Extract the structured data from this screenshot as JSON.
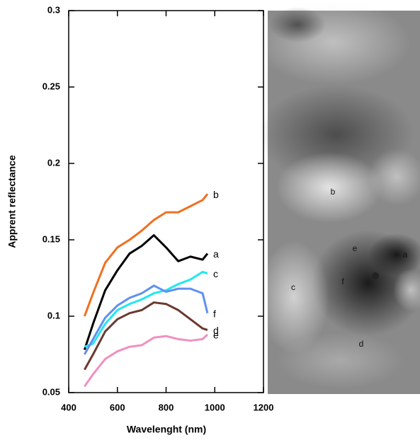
{
  "chart_data": {
    "type": "line",
    "x_label": "Wavelenght (nm)",
    "y_label": "Apprent reflectance",
    "x": [
      465,
      500,
      550,
      600,
      650,
      700,
      750,
      800,
      850,
      900,
      950,
      970
    ],
    "series": [
      {
        "name": "b",
        "color": "#f07020",
        "values": [
          0.1,
          0.115,
          0.135,
          0.145,
          0.15,
          0.156,
          0.163,
          0.168,
          0.168,
          0.172,
          0.176,
          0.18
        ]
      },
      {
        "name": "a",
        "color": "#000000",
        "values": [
          0.078,
          0.095,
          0.117,
          0.13,
          0.141,
          0.146,
          0.153,
          0.145,
          0.136,
          0.139,
          0.137,
          0.141
        ]
      },
      {
        "name": "c",
        "color": "#20e8f0",
        "values": [
          0.08,
          0.082,
          0.095,
          0.104,
          0.108,
          0.111,
          0.115,
          0.117,
          0.121,
          0.124,
          0.129,
          0.128
        ]
      },
      {
        "name": "f",
        "color": "#6090f0",
        "values": [
          0.075,
          0.085,
          0.099,
          0.107,
          0.112,
          0.115,
          0.12,
          0.116,
          0.118,
          0.118,
          0.115,
          0.102
        ]
      },
      {
        "name": "d",
        "color": "#6a3a30",
        "values": [
          0.065,
          0.075,
          0.09,
          0.098,
          0.102,
          0.104,
          0.109,
          0.108,
          0.104,
          0.098,
          0.092,
          0.091
        ]
      },
      {
        "name": "e",
        "color": "#f090c0",
        "values": [
          0.054,
          0.062,
          0.072,
          0.077,
          0.08,
          0.081,
          0.086,
          0.087,
          0.085,
          0.084,
          0.085,
          0.088
        ]
      }
    ],
    "xlim": [
      400,
      1200
    ],
    "xticks": [
      400,
      600,
      800,
      1000,
      1200
    ],
    "ylim": [
      0.05,
      0.3
    ],
    "yticks": [
      0.05,
      0.1,
      0.15,
      0.2,
      0.25,
      0.3
    ]
  },
  "image": {
    "labels": [
      "b",
      "e",
      "a",
      "c",
      "f",
      "d"
    ]
  }
}
